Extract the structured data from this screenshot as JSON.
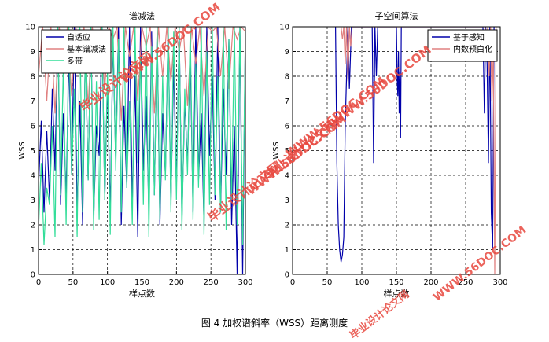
{
  "caption": "图 4 加权谱斜率（WSS）距离测度",
  "watermarks": [
    "毕业设计论文网",
    "WWW.56DOC.COM",
    "毕业设计论文网",
    "WWW.56DOC.COM",
    "毕业设计论文网",
    "WWW.56DOC.COM",
    "WWW.56DOC.COM",
    "毕业设计论文网",
    "WWW.56DOC.COM"
  ],
  "chart_data": [
    {
      "type": "line",
      "title": "谱减法",
      "xlabel": "样点数",
      "ylabel": "WSS",
      "xlim": [
        0,
        300
      ],
      "ylim": [
        0,
        10
      ],
      "xticks": [
        0,
        50,
        100,
        150,
        200,
        250,
        300
      ],
      "yticks": [
        0,
        1,
        2,
        3,
        4,
        5,
        6,
        7,
        8,
        9,
        10
      ],
      "grid": true,
      "legend": "top-left",
      "series": [
        {
          "name": "自适应",
          "color": "#0000aa",
          "x": [
            0,
            4,
            8,
            12,
            16,
            20,
            24,
            28,
            32,
            36,
            40,
            44,
            48,
            52,
            56,
            60,
            64,
            68,
            72,
            76,
            80,
            84,
            88,
            92,
            96,
            100,
            104,
            108,
            112,
            116,
            120,
            124,
            128,
            132,
            136,
            140,
            144,
            148,
            152,
            156,
            160,
            164,
            168,
            172,
            176,
            180,
            184,
            188,
            192,
            196,
            200,
            204,
            208,
            212,
            216,
            220,
            224,
            228,
            232,
            236,
            240,
            244,
            248,
            252,
            256,
            260,
            264,
            268,
            272,
            276,
            280,
            284,
            288,
            292,
            296,
            300
          ],
          "y": [
            3.5,
            6.2,
            2.5,
            5.8,
            3.0,
            7.5,
            4.2,
            10,
            2.8,
            6.5,
            3.2,
            8.8,
            4.0,
            10,
            2.5,
            7.0,
            2.0,
            9.2,
            3.8,
            10,
            2.2,
            6.0,
            4.8,
            10,
            3.0,
            7.8,
            2.5,
            9.5,
            4.5,
            10,
            2.0,
            6.8,
            3.5,
            10,
            2.8,
            8.0,
            1.5,
            10,
            4.2,
            7.2,
            2.5,
            9.8,
            3.2,
            10,
            2.0,
            6.5,
            4.0,
            10,
            2.8,
            8.5,
            3.5,
            10,
            2.2,
            7.0,
            4.5,
            9.0,
            2.5,
            10,
            3.8,
            6.5,
            2.0,
            10,
            4.8,
            8.0,
            3.0,
            10,
            2.5,
            7.5,
            4.0,
            9.5,
            2.0,
            6.0,
            0.0,
            10,
            0.0,
            10
          ]
        },
        {
          "name": "基本谱减法",
          "color": "#e08080",
          "x": [
            0,
            6,
            12,
            18,
            24,
            30,
            36,
            42,
            48,
            54,
            60,
            66,
            72,
            78,
            84,
            90,
            96,
            102,
            108,
            114,
            120,
            126,
            132,
            138,
            144,
            150,
            156,
            162,
            168,
            174,
            180,
            186,
            192,
            198,
            204,
            210,
            216,
            222,
            228,
            234,
            240,
            246,
            252,
            258,
            264,
            270,
            276,
            282,
            288,
            294,
            300
          ],
          "y": [
            8.0,
            10,
            7.0,
            10,
            6.5,
            10,
            8.5,
            10,
            7.2,
            10,
            9.0,
            10,
            6.8,
            10,
            8.2,
            10,
            7.5,
            10,
            9.5,
            10,
            6.2,
            10,
            8.8,
            10,
            7.0,
            10,
            9.2,
            10,
            6.5,
            10,
            8.0,
            10,
            7.8,
            10,
            9.0,
            10,
            6.8,
            10,
            8.5,
            10,
            7.2,
            10,
            9.8,
            10,
            8.0,
            10,
            7.5,
            10,
            9.5,
            10,
            9.8
          ]
        },
        {
          "name": "多带",
          "color": "#33dd99",
          "x": [
            0,
            4,
            8,
            12,
            16,
            20,
            24,
            28,
            32,
            36,
            40,
            44,
            48,
            52,
            56,
            60,
            64,
            68,
            72,
            76,
            80,
            84,
            88,
            92,
            96,
            100,
            104,
            108,
            112,
            116,
            120,
            124,
            128,
            132,
            136,
            140,
            144,
            148,
            152,
            156,
            160,
            164,
            168,
            172,
            176,
            180,
            184,
            188,
            192,
            196,
            200,
            204,
            208,
            212,
            216,
            220,
            224,
            228,
            232,
            236,
            240,
            244,
            248,
            252,
            256,
            260,
            264,
            268,
            272,
            276,
            280,
            284,
            288,
            292,
            296,
            300
          ],
          "y": [
            1.8,
            4.5,
            1.2,
            3.5,
            2.8,
            6.0,
            1.5,
            10,
            3.2,
            8.5,
            2.0,
            10,
            4.0,
            7.5,
            1.5,
            10,
            2.5,
            9.0,
            3.8,
            10,
            1.8,
            7.8,
            2.2,
            10,
            3.0,
            8.2,
            1.6,
            10,
            4.2,
            9.5,
            2.5,
            10,
            3.5,
            7.0,
            2.0,
            10,
            4.5,
            8.8,
            2.8,
            10,
            1.5,
            9.2,
            3.2,
            10,
            2.2,
            8.0,
            3.8,
            10,
            2.5,
            9.8,
            3.0,
            10,
            1.8,
            7.5,
            4.0,
            10,
            2.2,
            8.5,
            3.5,
            10,
            1.6,
            9.0,
            2.8,
            10,
            3.2,
            8.0,
            2.5,
            10,
            1.8,
            9.5,
            3.0,
            10,
            2.0,
            10,
            1.2,
            10
          ]
        }
      ]
    },
    {
      "type": "line",
      "title": "子空间算法",
      "xlabel": "样点数",
      "ylabel": "WSS",
      "xlim": [
        0,
        300
      ],
      "ylim": [
        0,
        10
      ],
      "xticks": [
        0,
        50,
        100,
        150,
        200,
        250,
        300
      ],
      "yticks": [
        0,
        1,
        2,
        3,
        4,
        5,
        6,
        7,
        8,
        9,
        10
      ],
      "grid": true,
      "legend": "top-right",
      "series": [
        {
          "name": "基于感知",
          "color": "#0000aa",
          "x": [
            62,
            64,
            66,
            68,
            70,
            72,
            74,
            76,
            78,
            80,
            82,
            85,
            88,
            115,
            117,
            119,
            121,
            123,
            125,
            150,
            151,
            152,
            153,
            154,
            155,
            156,
            157,
            275,
            277,
            279,
            281,
            283,
            285,
            287,
            289,
            291
          ],
          "y": [
            10,
            4.5,
            2.0,
            1.0,
            0.5,
            0.8,
            1.5,
            6.0,
            8.0,
            10,
            7.5,
            10,
            10,
            10,
            4.5,
            10,
            8.0,
            10,
            10,
            10,
            8.0,
            7.2,
            9.0,
            6.5,
            8.2,
            5.5,
            10,
            10,
            6.5,
            10,
            8.5,
            4.5,
            10,
            2.5,
            1.0,
            10
          ]
        },
        {
          "name": "内数预白化",
          "color": "#e08080",
          "x": [
            70,
            72,
            74,
            76,
            78,
            80,
            82,
            84,
            86,
            88,
            90,
            278,
            280,
            282,
            284,
            286,
            288,
            290,
            292,
            294
          ],
          "y": [
            10,
            9.5,
            10,
            8.5,
            10,
            7.8,
            10,
            9.2,
            10,
            10,
            10,
            10,
            9.5,
            10,
            8.0,
            10,
            7.0,
            9.0,
            0.0,
            10
          ]
        }
      ]
    }
  ]
}
